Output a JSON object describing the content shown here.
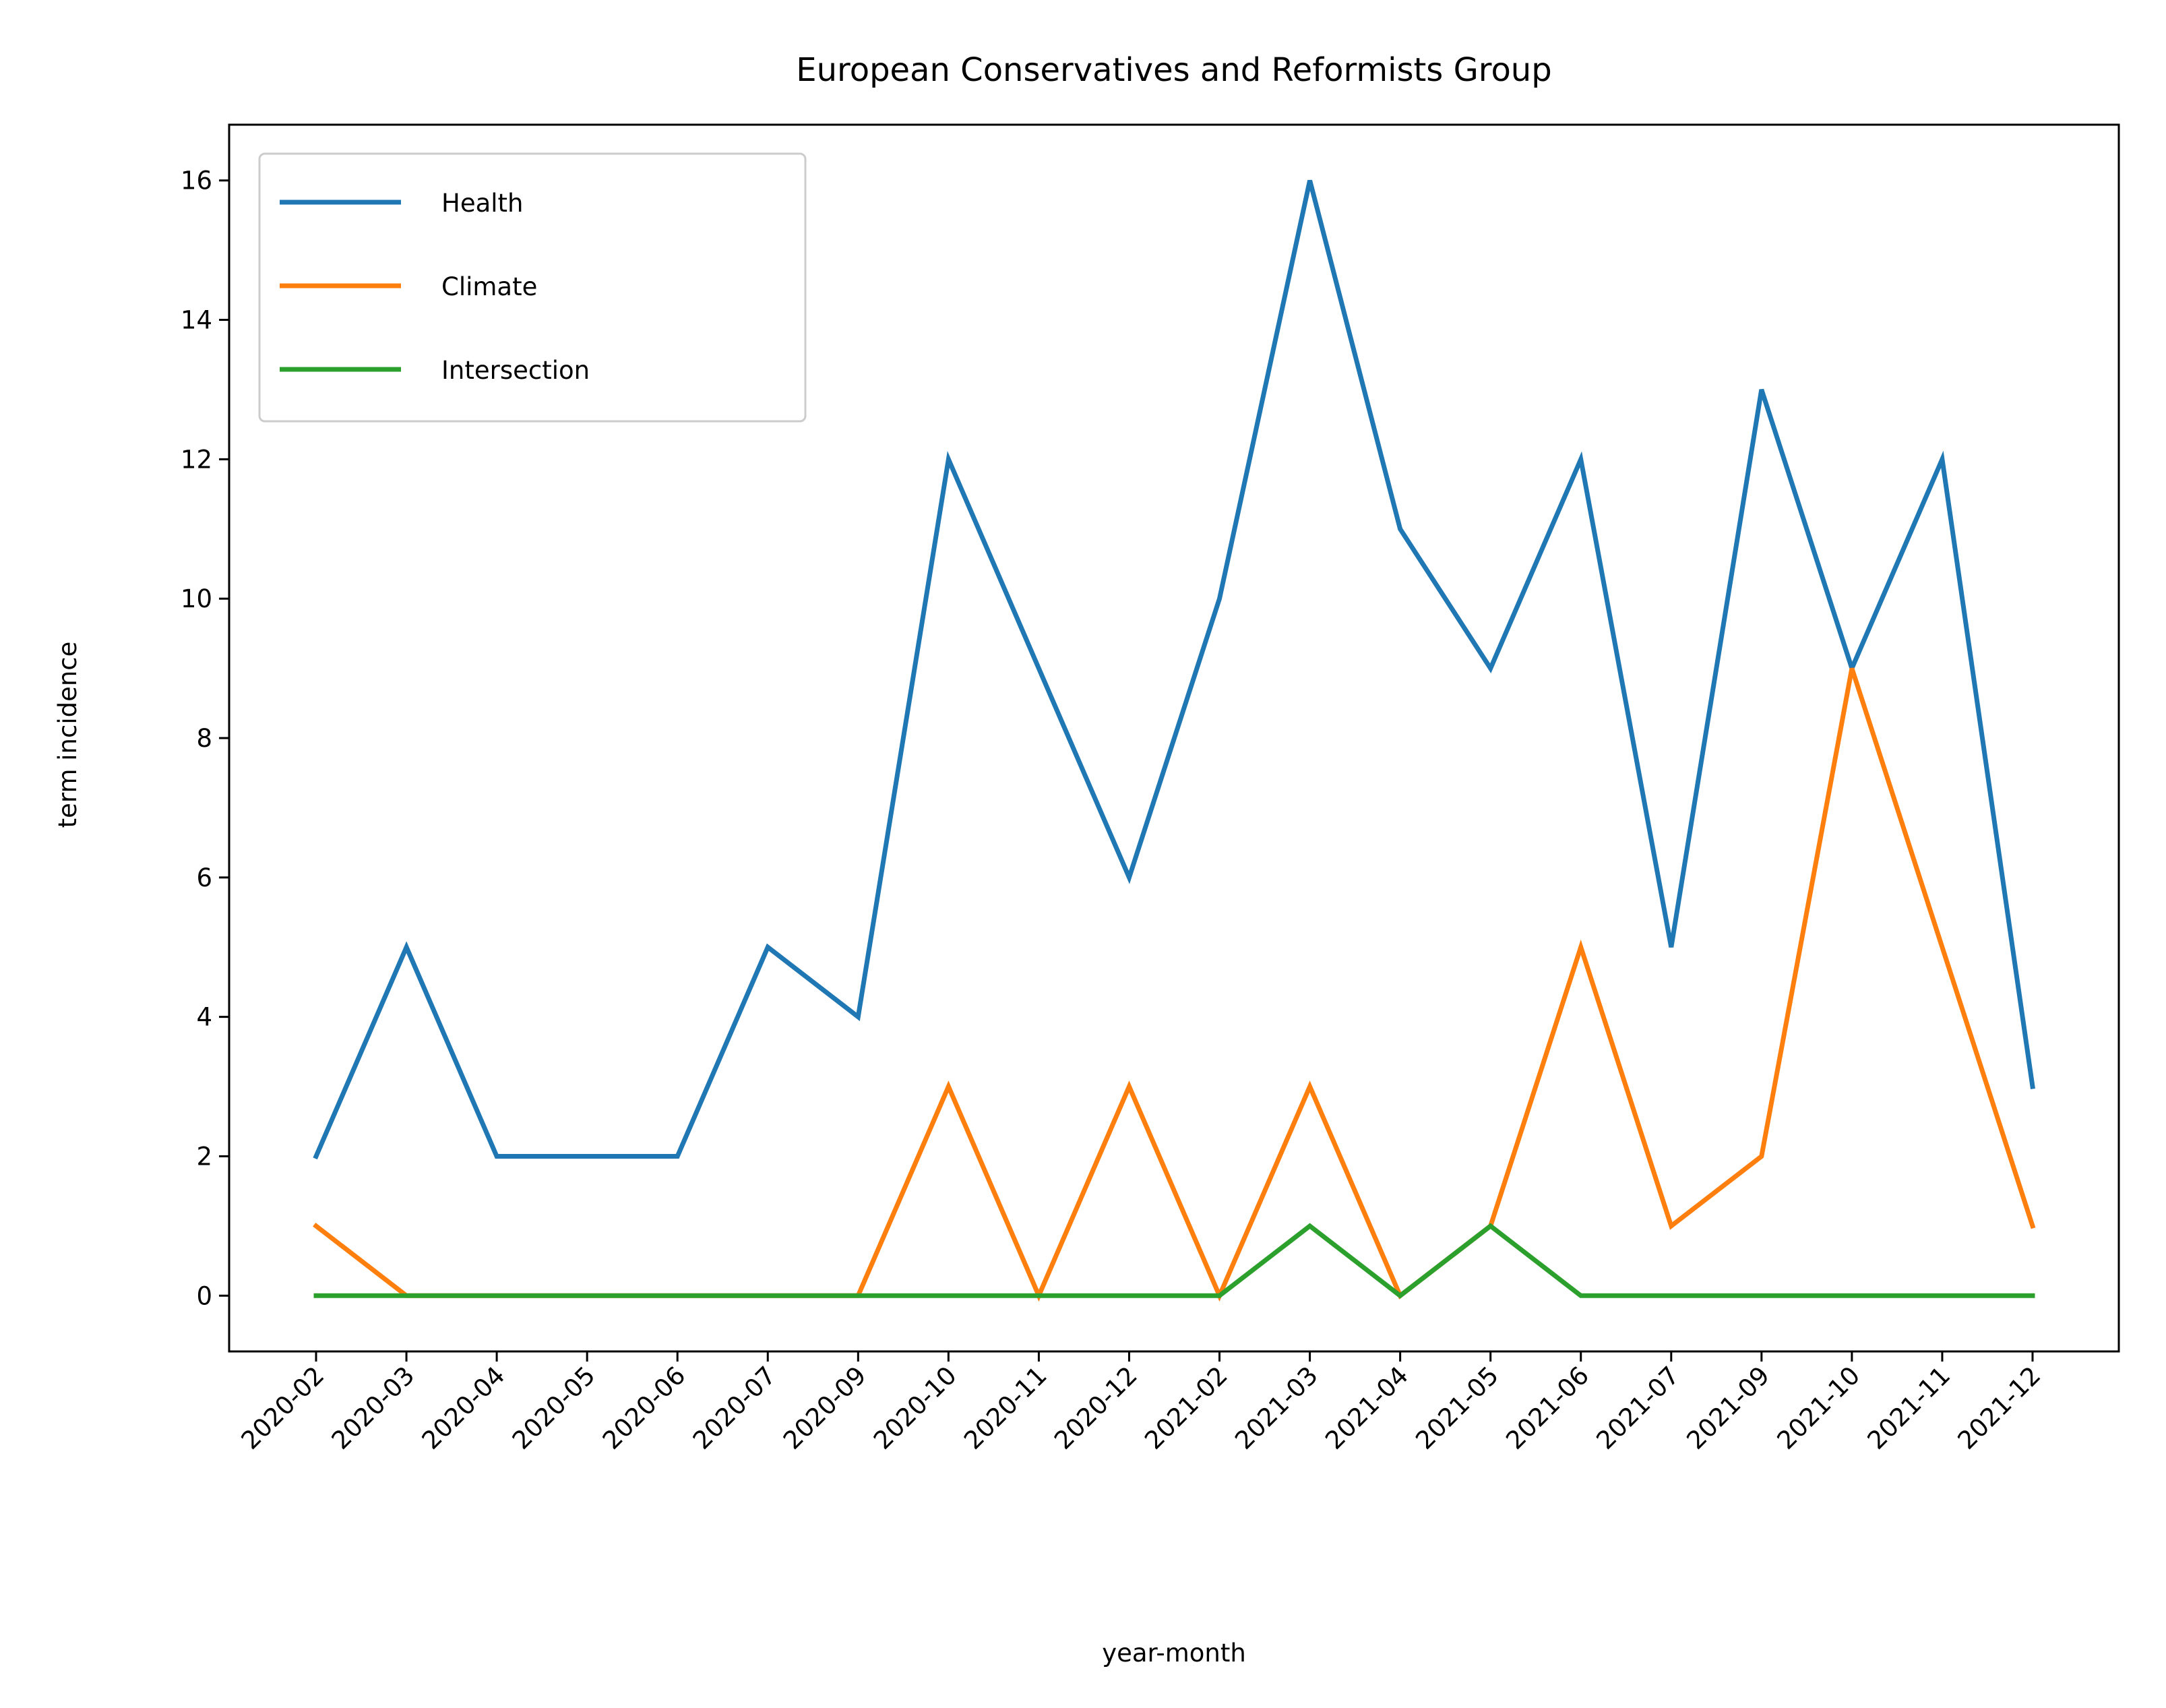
{
  "chart_data": {
    "type": "line",
    "title": "European Conservatives and Reformists Group",
    "xlabel": "year-month",
    "ylabel": "term incidence",
    "categories": [
      "2020-02",
      "2020-03",
      "2020-04",
      "2020-05",
      "2020-06",
      "2020-07",
      "2020-09",
      "2020-10",
      "2020-11",
      "2020-12",
      "2021-02",
      "2021-03",
      "2021-04",
      "2021-05",
      "2021-06",
      "2021-07",
      "2021-09",
      "2021-10",
      "2021-11",
      "2021-12"
    ],
    "yticks": [
      0,
      2,
      4,
      6,
      8,
      10,
      12,
      14,
      16
    ],
    "ylim": [
      -0.8,
      16.8
    ],
    "grid": false,
    "legend_position": "upper-left",
    "series": [
      {
        "name": "Health",
        "color": "#1f77b4",
        "values": [
          2,
          5,
          2,
          2,
          2,
          5,
          4,
          12,
          9,
          6,
          10,
          16,
          11,
          9,
          12,
          5,
          13,
          9,
          12,
          3
        ]
      },
      {
        "name": "Climate",
        "color": "#ff7f0e",
        "values": [
          1,
          0,
          0,
          0,
          0,
          0,
          0,
          3,
          0,
          3,
          0,
          3,
          0,
          1,
          5,
          1,
          2,
          9,
          5,
          1
        ]
      },
      {
        "name": "Intersection",
        "color": "#2ca02c",
        "values": [
          0,
          0,
          0,
          0,
          0,
          0,
          0,
          0,
          0,
          0,
          0,
          1,
          0,
          1,
          0,
          0,
          0,
          0,
          0,
          0
        ]
      }
    ]
  }
}
